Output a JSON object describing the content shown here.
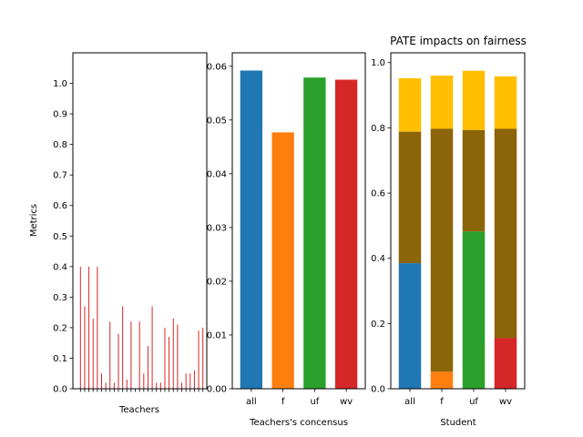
{
  "chart_data": [
    {
      "type": "bar",
      "xlabel": "Teachers",
      "ylabel": "Metrics",
      "ylim": [
        0,
        1.1
      ],
      "yticks": [
        "0.0",
        "0.1",
        "0.2",
        "0.3",
        "0.4",
        "0.5",
        "0.6",
        "0.7",
        "0.8",
        "0.9",
        "1.0"
      ],
      "bar_color": "#d62728",
      "values": [
        0.4,
        0.27,
        0.4,
        0.23,
        0.4,
        0.05,
        0.02,
        0.22,
        0.02,
        0.18,
        0.27,
        0.03,
        0.22,
        0.0,
        0.22,
        0.05,
        0.14,
        0.27,
        0.02,
        0.02,
        0.2,
        0.17,
        0.23,
        0.21,
        0.02,
        0.05,
        0.05,
        0.06,
        0.19,
        0.2
      ]
    },
    {
      "type": "bar",
      "xlabel": "Teachers's concensus",
      "ylabel": "",
      "ylim": [
        0,
        0.0625
      ],
      "yticks": [
        "0.00",
        "0.01",
        "0.02",
        "0.03",
        "0.04",
        "0.05",
        "0.06"
      ],
      "categories": [
        "all",
        "f",
        "uf",
        "wv"
      ],
      "values": [
        0.0592,
        0.0477,
        0.0579,
        0.0575
      ],
      "colors": [
        "#1f77b4",
        "#ff7f0e",
        "#2ca02c",
        "#d62728"
      ]
    },
    {
      "type": "bar",
      "title": "PATE impacts on fairness",
      "xlabel": "Student",
      "ylabel": "",
      "ylim": [
        0,
        1.03
      ],
      "yticks": [
        "0.0",
        "0.2",
        "0.4",
        "0.6",
        "0.8",
        "1.0"
      ],
      "categories": [
        "all",
        "f",
        "uf",
        "wv"
      ],
      "stacked": true,
      "base_colors": [
        "#1f77b4",
        "#ff7f0e",
        "#2ca02c",
        "#d62728"
      ],
      "middle_color": "#8b6508",
      "top_color": "#ffbf00",
      "base_values": [
        0.385,
        0.052,
        0.482,
        0.155
      ],
      "middle_top": [
        0.788,
        0.797,
        0.793,
        0.797
      ],
      "totals": [
        0.952,
        0.96,
        0.975,
        0.958
      ]
    }
  ]
}
